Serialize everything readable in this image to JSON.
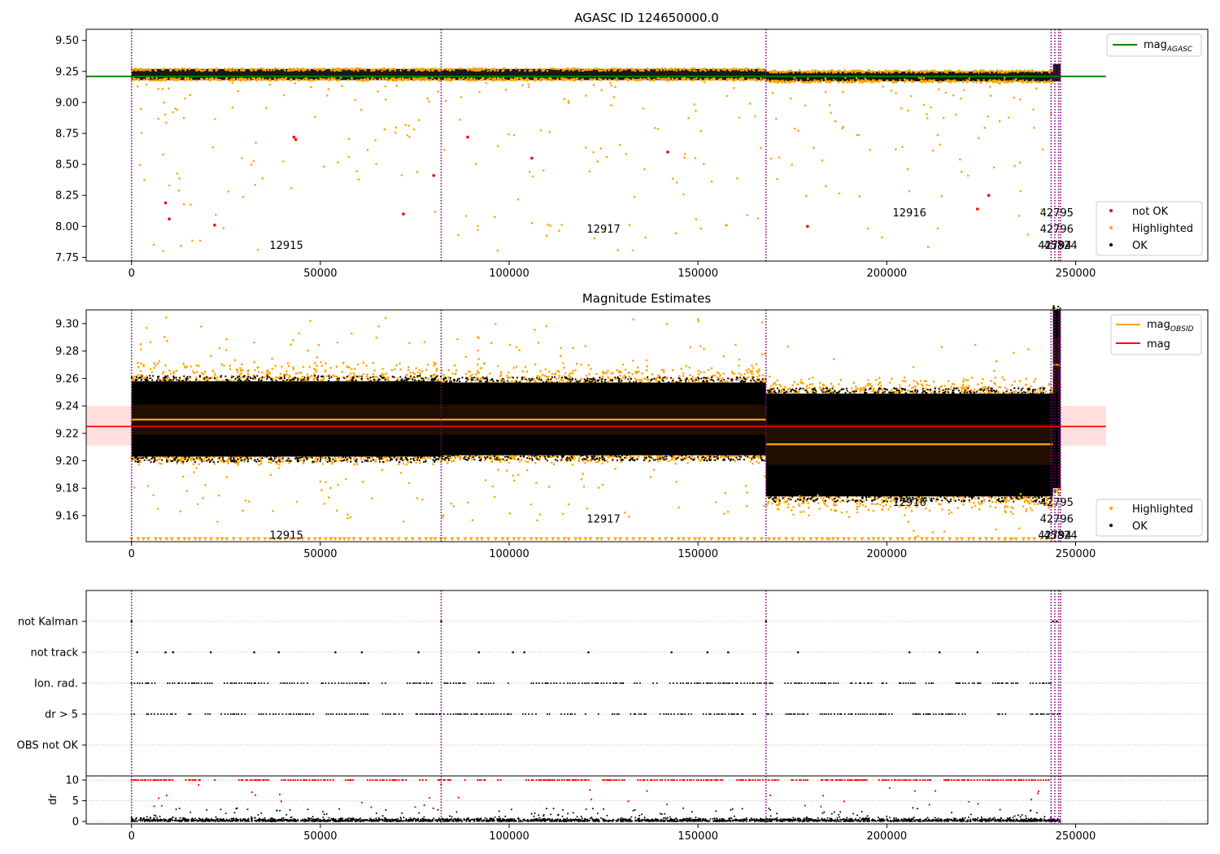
{
  "chart_data": [
    {
      "type": "scatter",
      "title": "AGASC ID 124650000.0",
      "xlim": [
        -12000,
        285000
      ],
      "ylim": [
        7.72,
        9.59
      ],
      "xticks": [
        0,
        50000,
        100000,
        150000,
        200000,
        250000
      ],
      "xtick_labels": [
        "0",
        "50000",
        "100000",
        "150000",
        "200000",
        "250000"
      ],
      "yticks": [
        7.75,
        8.0,
        8.25,
        8.5,
        8.75,
        9.0,
        9.25,
        9.5
      ],
      "ytick_labels": [
        "7.75",
        "8.00",
        "8.25",
        "8.50",
        "8.75",
        "9.00",
        "9.25",
        "9.50"
      ],
      "mag_agasc": 9.21,
      "mag_agasc_x": [
        -12000,
        258000
      ],
      "ok_bands": [
        {
          "x": [
            0,
            82000
          ],
          "y": [
            9.18,
            9.27
          ]
        },
        {
          "x": [
            82000,
            168000
          ],
          "y": [
            9.18,
            9.27
          ]
        },
        {
          "x": [
            168000,
            244000
          ],
          "y": [
            9.17,
            9.25
          ]
        },
        {
          "x": [
            244000,
            246000
          ],
          "y": [
            9.17,
            9.31
          ]
        }
      ],
      "not_ok_points": [
        {
          "x": 9000,
          "y": 8.19
        },
        {
          "x": 10000,
          "y": 8.06
        },
        {
          "x": 22000,
          "y": 8.01
        },
        {
          "x": 43000,
          "y": 8.72
        },
        {
          "x": 43500,
          "y": 8.7
        },
        {
          "x": 72000,
          "y": 8.1
        },
        {
          "x": 80000,
          "y": 8.41
        },
        {
          "x": 89000,
          "y": 8.72
        },
        {
          "x": 106000,
          "y": 8.55
        },
        {
          "x": 142000,
          "y": 8.6
        },
        {
          "x": 179000,
          "y": 8.0
        },
        {
          "x": 224000,
          "y": 8.14
        },
        {
          "x": 227000,
          "y": 8.25
        }
      ],
      "legend": [
        {
          "label": "mag",
          "sub": "AGASC",
          "marker": "line",
          "color": "#008000"
        }
      ],
      "legend2": [
        {
          "label": "not OK",
          "marker": "dot",
          "color": "#ff0000"
        },
        {
          "label": "Highlighted",
          "marker": "dot",
          "color": "#ffa500"
        },
        {
          "label": "OK",
          "marker": "dot",
          "color": "#000000"
        }
      ],
      "obsids": [
        {
          "text": "12915",
          "x": 41000,
          "y": 7.82
        },
        {
          "text": "12917",
          "x": 125000,
          "y": 7.95
        },
        {
          "text": "12916",
          "x": 206000,
          "y": 8.08
        },
        {
          "text": "42795",
          "x": 245000,
          "y": 8.08
        },
        {
          "text": "42796",
          "x": 245000,
          "y": 7.95
        },
        {
          "text": "42794",
          "x": 244500,
          "y": 7.82
        },
        {
          "text": "45824",
          "x": 246000,
          "y": 7.82
        }
      ]
    },
    {
      "type": "scatter",
      "title": "Magnitude Estimates",
      "xlim": [
        -12000,
        285000
      ],
      "ylim": [
        9.141,
        9.31
      ],
      "xticks": [
        0,
        50000,
        100000,
        150000,
        200000,
        250000
      ],
      "xtick_labels": [
        "0",
        "50000",
        "100000",
        "150000",
        "200000",
        "250000"
      ],
      "yticks": [
        9.16,
        9.18,
        9.2,
        9.22,
        9.24,
        9.26,
        9.28,
        9.3
      ],
      "ytick_labels": [
        "9.16",
        "9.18",
        "9.20",
        "9.22",
        "9.24",
        "9.26",
        "9.28",
        "9.30"
      ],
      "mag": 9.225,
      "mag_band": [
        9.211,
        9.24
      ],
      "mag_x": [
        -12000,
        258000
      ],
      "segments": [
        {
          "obsid": "12915",
          "x": [
            0,
            82000
          ],
          "mag_obsid": 9.23,
          "std": [
            9.219,
            9.241
          ],
          "ok": [
            9.203,
            9.258
          ],
          "hl": [
            9.196,
            9.275
          ]
        },
        {
          "obsid": "12917",
          "x": [
            82000,
            168000
          ],
          "mag_obsid": 9.23,
          "std": [
            9.219,
            9.241
          ],
          "ok": [
            9.204,
            9.257
          ],
          "hl": [
            9.197,
            9.272
          ]
        },
        {
          "obsid": "12916",
          "x": [
            168000,
            244000
          ],
          "mag_obsid": 9.212,
          "std": [
            9.197,
            9.227
          ],
          "ok": [
            9.174,
            9.249
          ],
          "hl": [
            9.16,
            9.262
          ]
        },
        {
          "obsid": "42795",
          "x": [
            244000,
            246000
          ],
          "mag_obsid": 9.27,
          "std": [
            9.25,
            9.29
          ],
          "ok": [
            9.18,
            9.31
          ],
          "hl": [
            9.17,
            9.31
          ]
        }
      ],
      "legend": [
        {
          "label": "mag",
          "sub": "OBSID",
          "marker": "line",
          "color": "#ffa500"
        },
        {
          "label": "mag",
          "marker": "line",
          "color": "#ff0000"
        }
      ],
      "legend2": [
        {
          "label": "Highlighted",
          "marker": "dot",
          "color": "#ffa500"
        },
        {
          "label": "OK",
          "marker": "dot",
          "color": "#000000"
        }
      ],
      "obsids": [
        {
          "text": "12915",
          "x": 41000,
          "y": 9.143
        },
        {
          "text": "12917",
          "x": 125000,
          "y": 9.155
        },
        {
          "text": "12916",
          "x": 206000,
          "y": 9.167
        },
        {
          "text": "42795",
          "x": 245000,
          "y": 9.167
        },
        {
          "text": "42796",
          "x": 245000,
          "y": 9.155
        },
        {
          "text": "42794",
          "x": 244500,
          "y": 9.143
        },
        {
          "text": "45824",
          "x": 246000,
          "y": 9.143
        }
      ]
    },
    {
      "type": "scatter",
      "title": "",
      "xlim": [
        -12000,
        285000
      ],
      "flag_labels": [
        "not Kalman",
        "not track",
        "Ion. rad.",
        "dr > 5",
        "OBS not OK"
      ],
      "flag_points": {
        "not Kalman": [
          0,
          82000,
          168000,
          244000,
          245000
        ],
        "not track": [
          1500,
          9000,
          11000,
          21000,
          32500,
          39000,
          54000,
          61000,
          76000,
          92000,
          101000,
          104000,
          121000,
          143000,
          152500,
          158000,
          176500,
          206000,
          214000,
          224000
        ]
      },
      "xticks": [
        0,
        50000,
        100000,
        150000,
        200000,
        250000
      ],
      "xtick_labels": [
        "0",
        "50000",
        "100000",
        "150000",
        "200000",
        "250000"
      ]
    },
    {
      "type": "scatter",
      "title": "",
      "ylabel": "dr",
      "xlim": [
        -12000,
        285000
      ],
      "ylim": [
        -0.6,
        11
      ],
      "yticks": [
        0,
        5,
        10
      ],
      "ytick_labels": [
        "0",
        "5",
        "10"
      ],
      "xticks": [
        0,
        50000,
        100000,
        150000,
        200000,
        250000
      ],
      "xtick_labels": [
        "0",
        "50000",
        "100000",
        "150000",
        "200000",
        "250000"
      ],
      "dr_clipped_value": 10
    }
  ],
  "shared": {
    "obsid_boundaries": [
      0,
      82000,
      168000,
      243500,
      244500,
      245500,
      246000
    ],
    "colors": {
      "ok": "#000000",
      "highlighted": "#ffa500",
      "not_ok": "#ff0000",
      "agasc": "#008000",
      "mag": "#ff0000",
      "obsid_line": "#800080"
    }
  }
}
